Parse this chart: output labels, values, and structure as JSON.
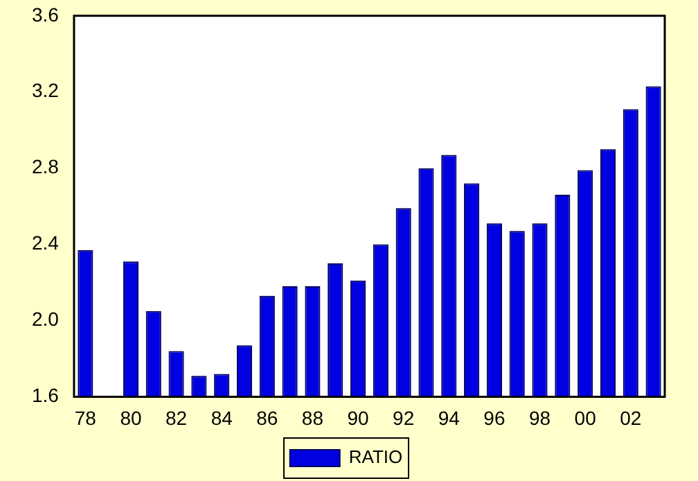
{
  "chart_data": {
    "type": "bar",
    "categories": [
      "78",
      null,
      "80",
      null,
      "82",
      null,
      "84",
      null,
      "86",
      null,
      "88",
      null,
      "90",
      null,
      "92",
      null,
      "94",
      null,
      "96",
      null,
      "98",
      null,
      "00",
      null,
      "02",
      null
    ],
    "series": [
      {
        "name": "RATIO",
        "color": "#0000e0",
        "values": [
          2.37,
          null,
          2.31,
          2.05,
          1.84,
          1.71,
          1.72,
          1.87,
          2.13,
          2.18,
          2.18,
          2.3,
          2.21,
          2.4,
          2.59,
          2.8,
          2.87,
          2.72,
          2.51,
          2.47,
          2.51,
          2.66,
          2.79,
          2.9,
          3.11,
          3.23
        ]
      }
    ],
    "ylim": [
      1.6,
      3.6
    ],
    "yticks": [
      {
        "value": 1.6,
        "label": "1.6"
      },
      {
        "value": 2.0,
        "label": "2.0"
      },
      {
        "value": 2.4,
        "label": "2.4"
      },
      {
        "value": 2.8,
        "label": "2.8"
      },
      {
        "value": 3.2,
        "label": "3.2"
      },
      {
        "value": 3.6,
        "label": "3.6"
      }
    ],
    "grid": false,
    "legend": "bottom"
  }
}
